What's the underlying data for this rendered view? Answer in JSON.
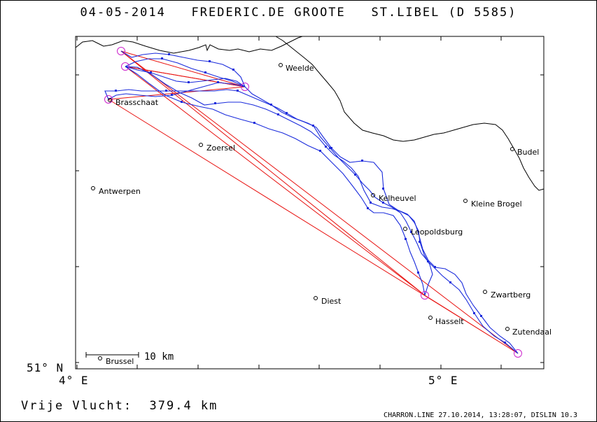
{
  "title": "04-05-2014   FREDERIC.DE GROOTE   ST.LIBEL (D 5585)",
  "axes": {
    "lat_label": "51° N",
    "lon_labels": [
      "4° E",
      "5° E"
    ]
  },
  "scale_label": "10 km",
  "towns": [
    {
      "name": "Weelde"
    },
    {
      "name": "Brasschaat"
    },
    {
      "name": "Zoersel"
    },
    {
      "name": "Antwerpen"
    },
    {
      "name": "Kelheuvel"
    },
    {
      "name": "Leopoldsburg"
    },
    {
      "name": "Kleine Brogel"
    },
    {
      "name": "Budel"
    },
    {
      "name": "Diest"
    },
    {
      "name": "Zwartberg"
    },
    {
      "name": "Hasselt"
    },
    {
      "name": "Zutendaal"
    },
    {
      "name": "Brussel"
    }
  ],
  "colors": {
    "track": "#1a2bdc",
    "task": "#e8110f",
    "turnpoint": "#cc22cc",
    "border": "#000000"
  },
  "footer_left": "Vrije Vlucht:  379.4 km",
  "footer_right": "CHARRON.LINE 27.10.2014, 13:28:07, DISLIN 10.3"
}
